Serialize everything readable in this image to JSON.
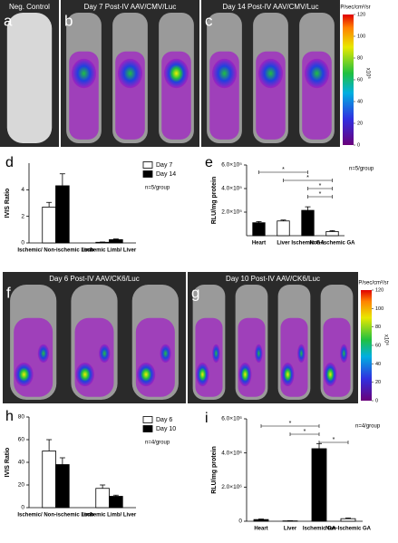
{
  "panels": [
    {
      "label": "a",
      "title": "Neg. Control"
    },
    {
      "label": "b",
      "title": "Day 7 Post-IV AAV/CMV/Luc"
    },
    {
      "label": "c",
      "title": "Day 14 Post-IV AAV/CMV/Luc"
    },
    {
      "label": "f",
      "title": "Day 6 Post-IV AAV/CK6/Luc"
    },
    {
      "label": "g",
      "title": "Day 10 Post-IV AAV/CK6/Luc"
    }
  ],
  "colorbars": [
    {
      "unit": "P/sec/cm²/sr",
      "scale": "x10⁶",
      "ticks": [
        0,
        20,
        40,
        60,
        80,
        100,
        120
      ],
      "lim": [
        0,
        120
      ]
    },
    {
      "unit": "P/sec/cm²/sr",
      "scale": "x10⁶",
      "ticks": [
        0,
        20,
        40,
        60,
        80,
        100,
        120
      ],
      "lim": [
        0,
        120
      ]
    }
  ],
  "chart_data": [
    {
      "type": "grouped_bar",
      "label": "d",
      "ylabel": "IVIS Ratio",
      "note": "n=5/group",
      "categories": [
        "Ischemic/ Non-ischemic Limb",
        "Ischemic Limb/ Liver"
      ],
      "series": [
        {
          "name": "Day 7",
          "color": "#ffffff",
          "values": [
            2.7,
            0.05
          ],
          "errors": [
            0.35,
            0.02
          ]
        },
        {
          "name": "Day 14",
          "color": "#000000",
          "values": [
            4.3,
            0.25
          ],
          "errors": [
            0.9,
            0.05
          ]
        }
      ],
      "ylim": [
        0,
        6
      ],
      "yticks": [
        0,
        2,
        4
      ]
    },
    {
      "type": "bar",
      "label": "e",
      "ylabel": "RLU/mg protein",
      "note": "n=5/group",
      "categories": [
        "Heart",
        "Liver",
        "Ischemic GA",
        "Non-Ischemic GA"
      ],
      "values": [
        110000,
        125000,
        215000,
        35000
      ],
      "errors": [
        10000,
        8000,
        30000,
        8000
      ],
      "colors": [
        "#000000",
        "#ffffff",
        "#000000",
        "#ffffff"
      ],
      "annotations": [
        "*",
        "*",
        "*",
        "*"
      ],
      "ylim": [
        0,
        600000
      ],
      "yticks": [
        {
          "value": 200000,
          "label": "2.0×10⁵"
        },
        {
          "value": 400000,
          "label": "4.0×10⁵"
        },
        {
          "value": 600000,
          "label": "6.0×10⁵"
        }
      ]
    },
    {
      "type": "grouped_bar",
      "label": "h",
      "ylabel": "IVIS Ratio",
      "note": "n=4/group",
      "categories": [
        "Ischemic/ Non-ischemic Limb",
        "Ischemic Limb/ Liver"
      ],
      "series": [
        {
          "name": "Day 6",
          "color": "#ffffff",
          "values": [
            50,
            17
          ],
          "errors": [
            10,
            3
          ]
        },
        {
          "name": "Day 10",
          "color": "#000000",
          "values": [
            38,
            10
          ],
          "errors": [
            6,
            1
          ]
        }
      ],
      "ylim": [
        0,
        80
      ],
      "yticks": [
        0,
        20,
        40,
        60,
        80
      ]
    },
    {
      "type": "bar",
      "label": "i",
      "ylabel": "RLU/mg protein",
      "note": "n=4/group",
      "categories": [
        "Heart",
        "Liver",
        "Ischemic GA",
        "Non-Ischemic GA"
      ],
      "values": [
        100000,
        20000,
        4250000,
        150000
      ],
      "errors": [
        30000,
        10000,
        300000,
        40000
      ],
      "colors": [
        "#000000",
        "#000000",
        "#000000",
        "#ffffff"
      ],
      "annotations": [
        "*",
        "*",
        "*"
      ],
      "ylim": [
        0,
        6000000
      ],
      "yticks": [
        0,
        {
          "value": 2000000,
          "label": "2.0×10⁶"
        },
        {
          "value": 4000000,
          "label": "4.0×10⁶"
        },
        {
          "value": 6000000,
          "label": "6.0×10⁶"
        }
      ]
    }
  ]
}
